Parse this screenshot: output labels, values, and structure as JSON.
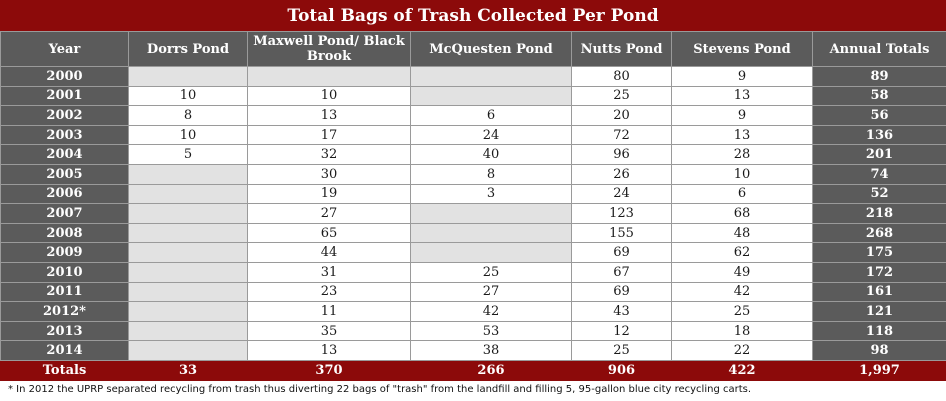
{
  "chart_data": {
    "type": "table",
    "title": "Total Bags of Trash Collected Per Pond",
    "columns": [
      "Year",
      "Dorrs Pond",
      "Maxwell Pond/ Black Brook",
      "McQuesten Pond",
      "Nutts Pond",
      "Stevens Pond",
      "Annual Totals"
    ],
    "rows": [
      [
        "2000",
        "",
        "",
        "",
        "80",
        "9",
        "89"
      ],
      [
        "2001",
        "10",
        "10",
        "",
        "25",
        "13",
        "58"
      ],
      [
        "2002",
        "8",
        "13",
        "6",
        "20",
        "9",
        "56"
      ],
      [
        "2003",
        "10",
        "17",
        "24",
        "72",
        "13",
        "136"
      ],
      [
        "2004",
        "5",
        "32",
        "40",
        "96",
        "28",
        "201"
      ],
      [
        "2005",
        "",
        "30",
        "8",
        "26",
        "10",
        "74"
      ],
      [
        "2006",
        "",
        "19",
        "3",
        "24",
        "6",
        "52"
      ],
      [
        "2007",
        "",
        "27",
        "",
        "123",
        "68",
        "218"
      ],
      [
        "2008",
        "",
        "65",
        "",
        "155",
        "48",
        "268"
      ],
      [
        "2009",
        "",
        "44",
        "",
        "69",
        "62",
        "175"
      ],
      [
        "2010",
        "",
        "31",
        "25",
        "67",
        "49",
        "172"
      ],
      [
        "2011",
        "",
        "23",
        "27",
        "69",
        "42",
        "161"
      ],
      [
        "2012*",
        "",
        "11",
        "42",
        "43",
        "25",
        "121"
      ],
      [
        "2013",
        "",
        "35",
        "53",
        "12",
        "18",
        "118"
      ],
      [
        "2014",
        "",
        "13",
        "38",
        "25",
        "22",
        "98"
      ]
    ],
    "totals": [
      "Totals",
      "33",
      "370",
      "266",
      "906",
      "422",
      "1,997"
    ],
    "footnote": "* In 2012 the UPRP separated recycling from trash thus diverting 22 bags of \"trash\" from the landfill and filling 5, 95-gallon blue city recycling carts."
  },
  "colors": {
    "title_bg": "#8c0a0a",
    "header_bg": "#5b5b5b",
    "empty_cell_bg": "#e2e2e2"
  }
}
